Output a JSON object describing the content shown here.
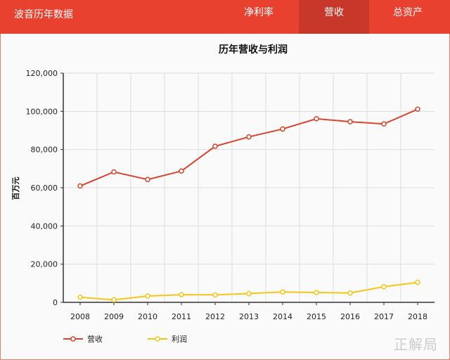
{
  "header": {
    "brand": "波音历年数据",
    "tabs": [
      {
        "label": "净利率",
        "active": false
      },
      {
        "label": "营收",
        "active": true
      },
      {
        "label": "总资产",
        "active": false
      }
    ]
  },
  "watermark": "正解局",
  "chart_data": {
    "type": "line",
    "title": "历年营收与利润",
    "ylabel": "百万元",
    "xlabel": "",
    "categories": [
      "2008",
      "2009",
      "2010",
      "2011",
      "2012",
      "2013",
      "2014",
      "2015",
      "2016",
      "2017",
      "2018"
    ],
    "ylim": [
      0,
      120000
    ],
    "yticks": [
      "0",
      "20,000",
      "40,000",
      "60,000",
      "80,000",
      "100,000",
      "120,000"
    ],
    "grid": true,
    "legend": "bottom-left",
    "series": [
      {
        "name": "营收",
        "color": "#d9432f",
        "values": [
          60909,
          68281,
          64306,
          68735,
          81698,
          86623,
          90762,
          96114,
          94571,
          93392,
          101127
        ]
      },
      {
        "name": "利润",
        "color": "#f5c518",
        "values": [
          2672,
          1312,
          3307,
          4018,
          3900,
          4585,
          5446,
          5176,
          4895,
          8197,
          10460
        ]
      }
    ]
  }
}
